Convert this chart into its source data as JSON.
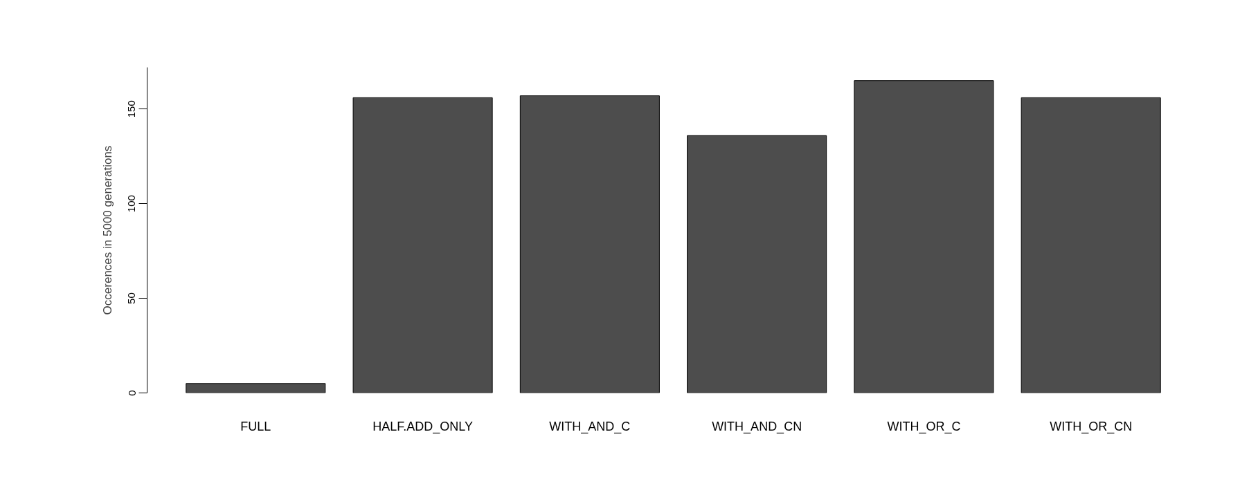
{
  "chart_data": {
    "type": "bar",
    "ylabel": "Occerences in 5000 generations",
    "categories": [
      "FULL",
      "HALF.ADD_ONLY",
      "WITH_AND_C",
      "WITH_AND_CN",
      "WITH_OR_C",
      "WITH_OR_CN"
    ],
    "values": [
      5,
      156,
      157,
      136,
      165,
      156
    ],
    "color": "#4d4d4d",
    "ylim": [
      0,
      172
    ],
    "yticks": [
      0,
      50,
      100,
      150
    ],
    "grid": false
  }
}
